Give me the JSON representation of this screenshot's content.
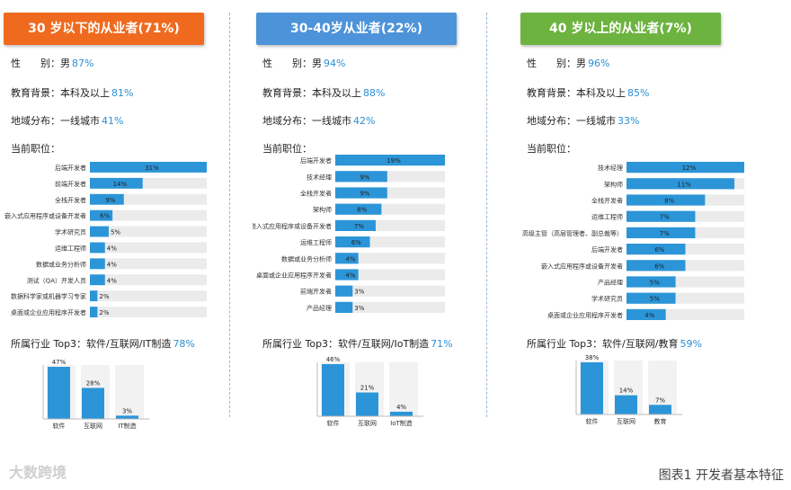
{
  "colors": {
    "bar": "#2c95d8",
    "track": "#ebebeb",
    "value": "#2a8fd4"
  },
  "panels": [
    {
      "header": "30 岁以下的从业者(71%)",
      "header_color": "#ef6a1e",
      "gender": {
        "label": "性　　别：男",
        "value": "87%"
      },
      "education": {
        "label": "教育背景：本科及以上",
        "value": "81%"
      },
      "region": {
        "label": "地域分布：一线城市",
        "value": "41%"
      },
      "position_label": "当前职位：",
      "industry": {
        "label": "所属行业 Top3：软件/互联网/IT制造",
        "value": "78%"
      }
    },
    {
      "header": "30-40岁从业者(22%)",
      "header_color": "#4d93d9",
      "gender": {
        "label": "性　　别：男",
        "value": "94%"
      },
      "education": {
        "label": "教育背景：本科及以上",
        "value": "88%"
      },
      "region": {
        "label": "地域分布：一线城市",
        "value": "42%"
      },
      "position_label": "当前职位：",
      "industry": {
        "label": "所属行业 Top3：软件/互联网/IoT制造",
        "value": "71%"
      }
    },
    {
      "header": "40 岁以上的从业者(7%)",
      "header_color": "#6db33f",
      "gender": {
        "label": "性　　别：男",
        "value": "96%"
      },
      "education": {
        "label": "教育背景：本科及以上",
        "value": "85%"
      },
      "region": {
        "label": "地域分布：一线城市",
        "value": "33%"
      },
      "position_label": "当前职位：",
      "industry": {
        "label": "所属行业 Top3：软件/互联网/教育",
        "value": "59%"
      }
    }
  ],
  "chart_data": [
    {
      "type": "bar",
      "orientation": "horizontal",
      "max": 31,
      "categories": [
        "后端开发者",
        "前端开发者",
        "全栈开发者",
        "嵌入式应用程序或设备开发者",
        "学术研究员",
        "运维工程师",
        "数据或业务分析师",
        "测试（QA）开发人员",
        "数据科学家或机器学习专家",
        "桌面或企业应用程序开发者"
      ],
      "values": [
        31,
        14,
        9,
        6,
        5,
        4,
        4,
        4,
        2,
        2
      ],
      "labels": [
        "31%",
        "14%",
        "9%",
        "6%",
        "5%",
        "4%",
        "4%",
        "4%",
        "2%",
        "2%"
      ]
    },
    {
      "type": "bar",
      "orientation": "vertical",
      "max": 47,
      "categories": [
        "软件",
        "互联网",
        "IT制造"
      ],
      "values": [
        47,
        28,
        3
      ],
      "labels": [
        "47%",
        "28%",
        "3%"
      ]
    },
    {
      "type": "bar",
      "orientation": "horizontal",
      "max": 19,
      "categories": [
        "后端开发者",
        "技术经理",
        "全栈开发者",
        "架构师",
        "嵌入式应用程序或设备开发者",
        "运维工程师",
        "数据或业务分析师",
        "桌面或企业应用程序开发者",
        "前端开发者",
        "产品经理"
      ],
      "values": [
        19,
        9,
        9,
        8,
        7,
        6,
        4,
        4,
        3,
        3
      ],
      "labels": [
        "19%",
        "9%",
        "9%",
        "8%",
        "7%",
        "6%",
        "4%",
        "4%",
        "3%",
        "3%"
      ]
    },
    {
      "type": "bar",
      "orientation": "vertical",
      "max": 46,
      "categories": [
        "软件",
        "互联网",
        "IoT制造"
      ],
      "values": [
        46,
        21,
        4
      ],
      "labels": [
        "46%",
        "21%",
        "4%"
      ]
    },
    {
      "type": "bar",
      "orientation": "horizontal",
      "max": 12,
      "categories": [
        "技术经理",
        "架构师",
        "全栈开发者",
        "运维工程师",
        "高级主管（高层管理者、副总裁等）",
        "后端开发者",
        "嵌入式应用程序或设备开发者",
        "产品经理",
        "学术研究员",
        "桌面或企业应用程序开发者"
      ],
      "values": [
        12,
        11,
        8,
        7,
        7,
        6,
        6,
        5,
        5,
        4
      ],
      "labels": [
        "12%",
        "11%",
        "8%",
        "7%",
        "7%",
        "6%",
        "6%",
        "5%",
        "5%",
        "4%"
      ]
    },
    {
      "type": "bar",
      "orientation": "vertical",
      "max": 38,
      "categories": [
        "软件",
        "互联网",
        "教育"
      ],
      "values": [
        38,
        14,
        7
      ],
      "labels": [
        "38%",
        "14%",
        "7%"
      ]
    }
  ],
  "watermark": "大数跨境",
  "caption": "图表1 开发者基本特征"
}
